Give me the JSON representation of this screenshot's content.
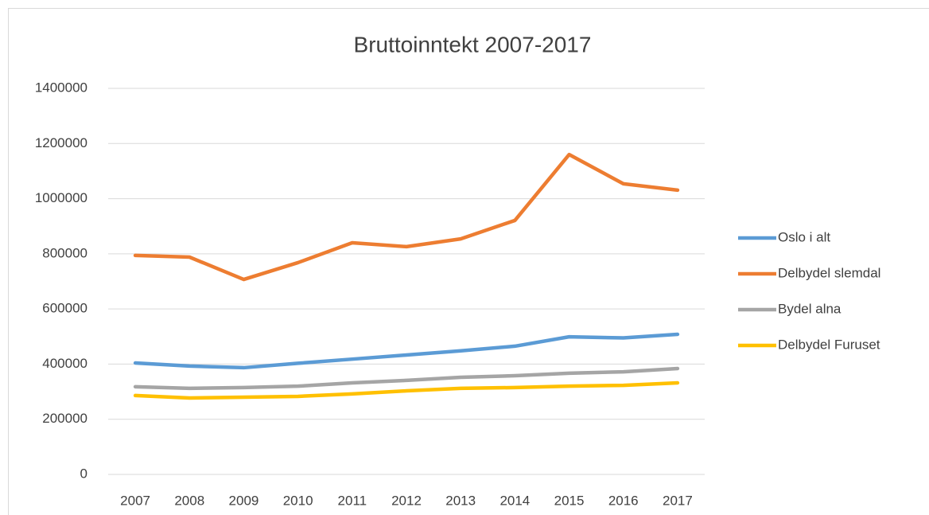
{
  "chart_data": {
    "type": "line",
    "title": "Bruttoinntekt 2007-2017",
    "categories": [
      "2007",
      "2008",
      "2009",
      "2010",
      "2011",
      "2012",
      "2013",
      "2014",
      "2015",
      "2016",
      "2017"
    ],
    "series": [
      {
        "name": "Oslo i alt",
        "color": "#5b9bd5",
        "values": [
          404000,
          393000,
          387000,
          403000,
          418000,
          433000,
          448000,
          465000,
          499000,
          495000,
          508000
        ]
      },
      {
        "name": "Delbydel slemdal",
        "color": "#ed7d31",
        "values": [
          794000,
          788000,
          707000,
          768000,
          840000,
          826000,
          854000,
          921000,
          1160000,
          1054000,
          1031000
        ]
      },
      {
        "name": "Bydel alna",
        "color": "#a5a5a5",
        "values": [
          318000,
          312000,
          315000,
          320000,
          332000,
          341000,
          352000,
          358000,
          367000,
          372000,
          384000
        ]
      },
      {
        "name": "Delbydel Furuset",
        "color": "#ffc000",
        "values": [
          286000,
          277000,
          280000,
          283000,
          292000,
          303000,
          312000,
          315000,
          320000,
          323000,
          332000
        ]
      }
    ],
    "ylim": [
      0,
      1400000
    ],
    "yticks": [
      0,
      200000,
      400000,
      600000,
      800000,
      1000000,
      1200000,
      1400000
    ],
    "grid": true,
    "legend": "right"
  }
}
